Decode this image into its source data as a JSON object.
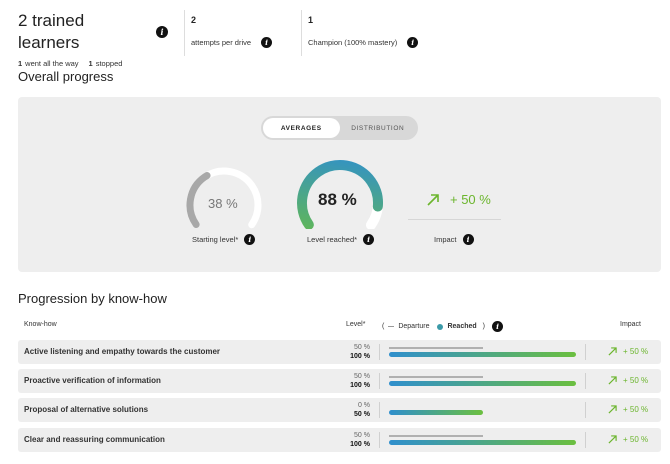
{
  "header": {
    "learners_title": "2 trained learners",
    "went_all_count": "1",
    "went_all_label": "went all the way",
    "stopped_count": "1",
    "stopped_label": "stopped",
    "attempts_value": "2",
    "attempts_label": "attempts per drive",
    "champion_value": "1",
    "champion_label": "Champion (100% mastery)"
  },
  "overall": {
    "title": "Overall progress",
    "tabs": [
      "AVERAGES",
      "DISTRIBUTION"
    ],
    "active_tab": "AVERAGES",
    "starting_value": "38 %",
    "starting_fraction": 0.38,
    "starting_label": "Starting level*",
    "reached_value": "88 %",
    "reached_fraction": 0.88,
    "reached_label": "Level reached*",
    "impact_value": "+ 50 %",
    "impact_label": "Impact"
  },
  "progression": {
    "title": "Progression by know-how",
    "col_knowhow": "Know-how",
    "col_level": "Level*",
    "legend_departure": "Departure",
    "legend_reached": "Reached",
    "legend_open": "(",
    "legend_close": ")",
    "col_impact": "Impact",
    "rows": [
      {
        "label": "Active listening and empathy towards the customer",
        "departure": "50 %",
        "reached": "100 %",
        "departure_pct": 50,
        "reached_pct": 100,
        "impact": "+ 50 %"
      },
      {
        "label": "Proactive verification of information",
        "departure": "50 %",
        "reached": "100 %",
        "departure_pct": 50,
        "reached_pct": 100,
        "impact": "+ 50 %"
      },
      {
        "label": "Proposal of alternative solutions",
        "departure": "0 %",
        "reached": "50 %",
        "departure_pct": 0,
        "reached_pct": 50,
        "impact": "+ 50 %"
      },
      {
        "label": "Clear and reassuring communication",
        "departure": "50 %",
        "reached": "100 %",
        "departure_pct": 50,
        "reached_pct": 100,
        "impact": "+ 50 %"
      }
    ]
  },
  "colors": {
    "accent_green": "#6bb52d",
    "gauge_start": "#2f8fcd",
    "gauge_end": "#6bbf3f",
    "reached_dot": "#3b9aa8"
  }
}
